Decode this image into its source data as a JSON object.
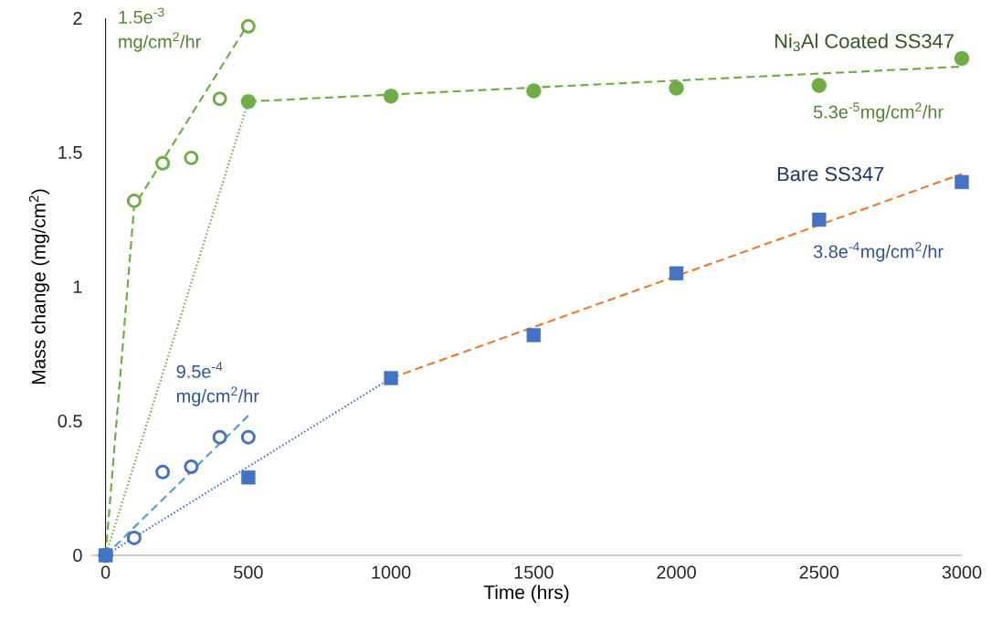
{
  "chart_data": {
    "type": "scatter",
    "xlabel": "Time (hrs)",
    "ylabel": "Mass change (mg/cm$^{2}$)",
    "xlim": [
      -50,
      3000
    ],
    "xticks": [
      0,
      500,
      1000,
      1500,
      2000,
      2500,
      3000
    ],
    "ylim": [
      0,
      2
    ],
    "yticks": [
      0,
      0.5,
      1,
      1.5,
      2
    ],
    "grid": false,
    "series": [
      {
        "type": "line",
        "color": "#70ad47",
        "line_style": "dashed",
        "x": [
          0,
          100,
          500
        ],
        "values": [
          0,
          1.3,
          1.98
        ]
      },
      {
        "type": "line",
        "color": "#70ad47",
        "line_style": "dotted",
        "x": [
          0,
          500
        ],
        "values": [
          0,
          1.69
        ]
      },
      {
        "type": "line",
        "color": "#70ad47",
        "line_style": "dashed",
        "x": [
          500,
          3000
        ],
        "values": [
          1.69,
          1.82
        ]
      },
      {
        "type": "line",
        "color": "#5b9bd5",
        "line_style": "dashed",
        "x": [
          0,
          500
        ],
        "values": [
          0,
          0.52
        ]
      },
      {
        "type": "line",
        "color": "#4472c4",
        "line_style": "dotted",
        "x": [
          0,
          1000
        ],
        "values": [
          0,
          0.66
        ]
      },
      {
        "type": "line",
        "color": "#ed7d31",
        "line_style": "dashed",
        "x": [
          1000,
          3000
        ],
        "values": [
          0.66,
          1.42
        ]
      },
      {
        "color": "#70ad47",
        "marker": "circle",
        "x": [
          0,
          100,
          200,
          300,
          400,
          500
        ],
        "values": [
          0,
          1.32,
          1.46,
          1.48,
          1.7,
          1.97
        ]
      },
      {
        "name": "Ni$_{3}$Al Coated SS347",
        "color": "#70ad47",
        "marker": "circle",
        "x": [
          0,
          500,
          1000,
          1500,
          2000,
          2500,
          3000
        ],
        "values": [
          0,
          1.69,
          1.71,
          1.73,
          1.74,
          1.75,
          1.85
        ]
      },
      {
        "color": "#4472c4",
        "marker": "circle",
        "x": [
          0,
          100,
          200,
          300,
          400,
          500
        ],
        "values": [
          0,
          0.065,
          0.31,
          0.33,
          0.44,
          0.44
        ]
      },
      {
        "name": "Bare SS347",
        "color": "#4472c4",
        "marker": "square",
        "x": [
          0,
          500,
          1000,
          1500,
          2000,
          2500,
          3000
        ],
        "values": [
          0,
          0.29,
          0.66,
          0.82,
          1.05,
          1.25,
          1.39
        ]
      }
    ],
    "annotations": [
      "1.5e$^{-3}$ mg/cm$^{2}$/hr",
      "9.5e$^{-4}$ mg/cm$^{2}$/hr",
      "5.3e$^{-5}$mg/cm$^{2}$/hr",
      "3.8e$^{-4}$mg/cm$^{2}$/hr"
    ]
  }
}
